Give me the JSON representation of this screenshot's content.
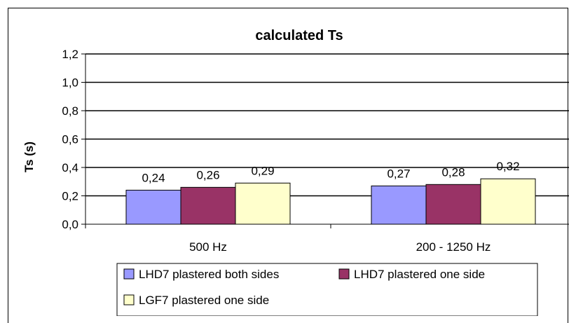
{
  "chart_data": {
    "type": "bar",
    "title": "calculated Ts",
    "xlabel": "",
    "ylabel": "Ts (s)",
    "ylim": [
      0,
      1.2
    ],
    "yticks": [
      "0,0",
      "0,2",
      "0,4",
      "0,6",
      "0,8",
      "1,0",
      "1,2"
    ],
    "ytick_values": [
      0,
      0.2,
      0.4,
      0.6,
      0.8,
      1.0,
      1.2
    ],
    "categories": [
      "500 Hz",
      "200 - 1250 Hz"
    ],
    "grid": true,
    "legend_position": "bottom",
    "series": [
      {
        "name": "LHD7  plastered both sides",
        "values": [
          0.24,
          0.27
        ],
        "labels": [
          "0,24",
          "0,27"
        ],
        "color": "#9999ff"
      },
      {
        "name": "LHD7  plastered one side",
        "values": [
          0.26,
          0.28
        ],
        "labels": [
          "0,26",
          "0,28"
        ],
        "color": "#993366"
      },
      {
        "name": "LGF7  plastered one side",
        "values": [
          0.29,
          0.32
        ],
        "labels": [
          "0,29",
          "0,32"
        ],
        "color": "#ffffcc"
      }
    ]
  }
}
